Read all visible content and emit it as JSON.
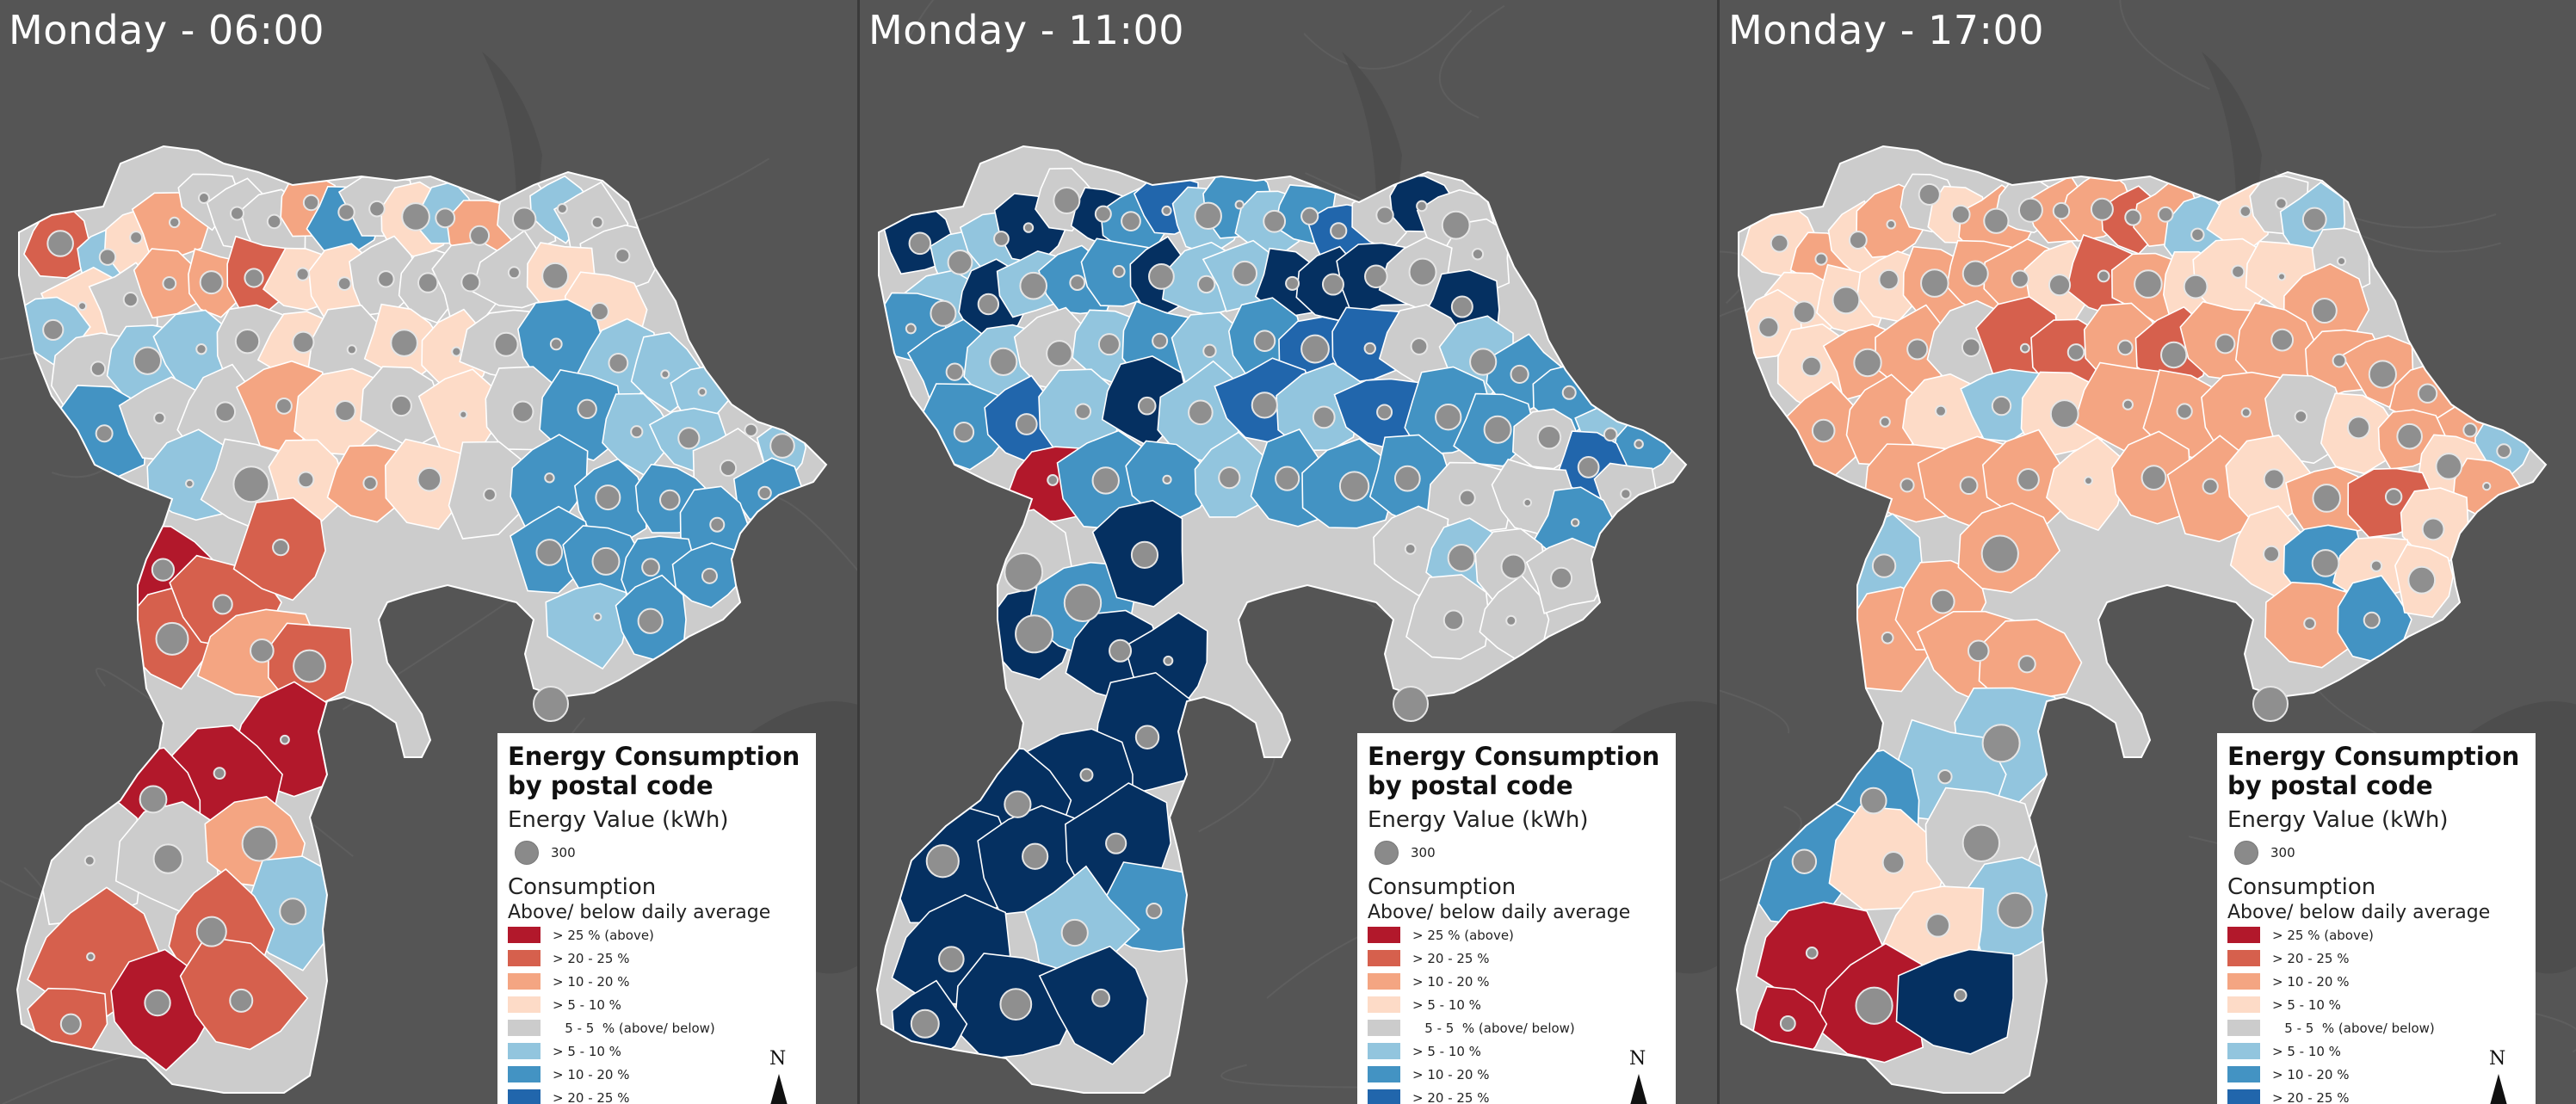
{
  "panels": [
    {
      "title": "Monday - 06:00",
      "scheme": "a"
    },
    {
      "title": "Monday - 11:00",
      "scheme": "b"
    },
    {
      "title": "Monday - 17:00",
      "scheme": "c"
    }
  ],
  "legend": {
    "title": "Energy Consumption by postal code",
    "size_heading": "Energy Value (kWh)",
    "size_sample": "300",
    "class_heading": "Consumption",
    "class_subheading": "Above/ below daily average",
    "classes": [
      {
        "label": "> 25 % (above)",
        "color": "#b2182b"
      },
      {
        "label": "> 20 - 25 %",
        "color": "#d6604d"
      },
      {
        "label": "> 10 - 20 %",
        "color": "#f4a582"
      },
      {
        "label": "> 5 - 10 %",
        "color": "#fddbc7"
      },
      {
        "label": "   5 - 5  % (above/ below)",
        "color": "#cccccc"
      },
      {
        "label": "> 5 - 10 %",
        "color": "#92c5de"
      },
      {
        "label": "> 10 - 20 %",
        "color": "#4393c3"
      },
      {
        "label": "> 20 - 25 %",
        "color": "#2166ac"
      }
    ],
    "north_label": "N"
  },
  "colors": {
    "red_dark": "#b2182b",
    "red": "#d6604d",
    "orange": "#f4a582",
    "peach": "#fddbc7",
    "grey": "#cccccc",
    "blue_light": "#92c5de",
    "blue": "#4393c3",
    "blue_mid": "#2166ac",
    "navy": "#053061",
    "background": "#555555"
  }
}
